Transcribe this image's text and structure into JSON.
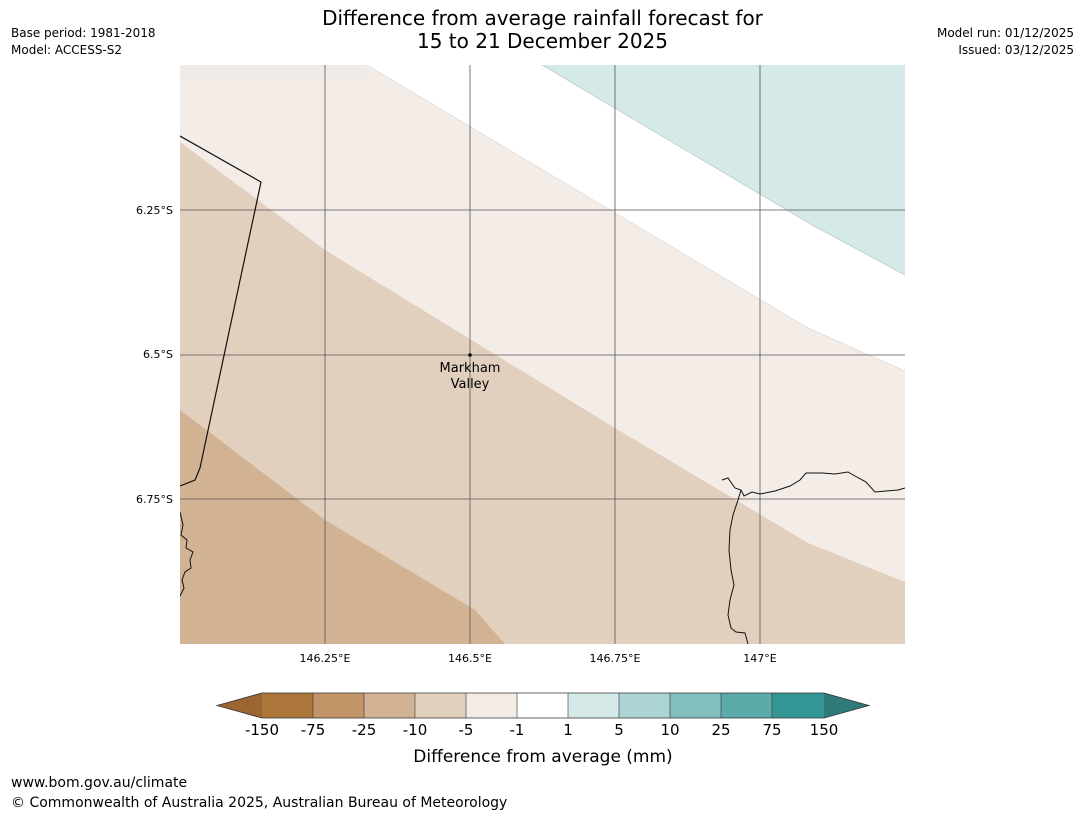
{
  "header": {
    "title_line1": "Difference from average rainfall forecast for",
    "title_line2": "15 to 21 December 2025",
    "base_period": "Base period: 1981-2018",
    "model": "Model: ACCESS-S2",
    "model_run": "Model run: 01/12/2025",
    "issued": "Issued: 03/12/2025"
  },
  "map": {
    "place_label_line1": "Markham",
    "place_label_line2": "Valley",
    "lat_labels": [
      "6.25°S",
      "6.5°S",
      "6.75°S"
    ],
    "lon_labels": [
      "146.25°E",
      "146.5°E",
      "146.75°E",
      "147°E"
    ]
  },
  "legend": {
    "ticks": [
      "-150",
      "-75",
      "-25",
      "-10",
      "-5",
      "-1",
      "1",
      "5",
      "10",
      "25",
      "75",
      "150"
    ],
    "colors": [
      "#9b6632",
      "#ad773c",
      "#c29468",
      "#d1b292",
      "#e2d0bf",
      "#f4ece6",
      "#ffffff",
      "#d5e9e8",
      "#acd4d4",
      "#80bfbe",
      "#5aabaa",
      "#349796",
      "#2e7a78"
    ],
    "label": "Difference from average (mm)"
  },
  "footer": {
    "url": "www.bom.gov.au/climate",
    "copyright": "© Commonwealth of Australia 2025, Australian Bureau of Meteorology"
  }
}
